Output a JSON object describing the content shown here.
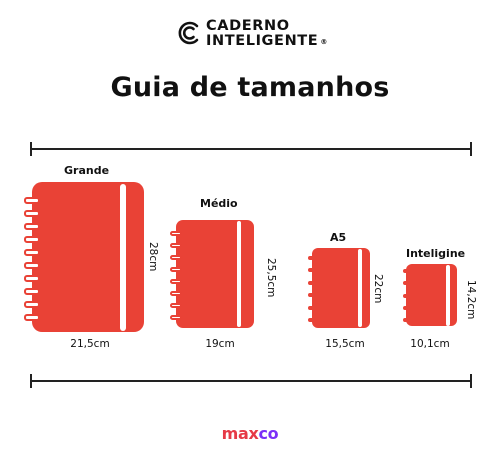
{
  "brand": {
    "line1": "CADERNO",
    "line2": "INTELIGENTE",
    "registered": "®",
    "logo_icon": "c-logo-icon"
  },
  "title": "Guia de tamanhos",
  "colors": {
    "cover": "#e94236",
    "footer_primary": "#e63946",
    "footer_secondary": "#7b2ff7"
  },
  "sizes": [
    {
      "name": "Grande",
      "width_label": "21,5cm",
      "height_label": "28cm"
    },
    {
      "name": "Médio",
      "width_label": "19cm",
      "height_label": "25,5cm"
    },
    {
      "name": "A5",
      "width_label": "15,5cm",
      "height_label": "22cm"
    },
    {
      "name": "Inteligine",
      "width_label": "10,1cm",
      "height_label": "14,2cm"
    }
  ],
  "footer": {
    "part1": "max",
    "part2": "co"
  }
}
